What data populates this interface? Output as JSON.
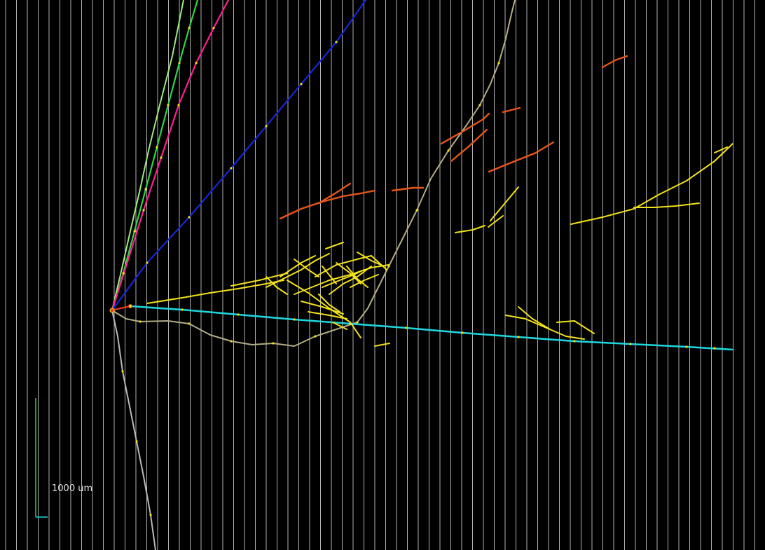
{
  "scale_bar": {
    "label": "1000 um"
  },
  "colors": {
    "background": "#000000",
    "grid": "#cfcfcf",
    "tan_track": "#b3ad86",
    "light_gray_track": "#b8b8b8",
    "green_track": "#2fd44a",
    "light_green_track": "#9be87f",
    "magenta_track": "#ff1f8f",
    "blue_track": "#1726d9",
    "cyan_track": "#1fd6de",
    "orange_segments": "#e8561a",
    "yellow_segments": "#f2e21b",
    "red_vertex": "#e23a1b",
    "scale_bar_vertical": "#2ed04f",
    "scale_bar_horizontal": "#1fd6de"
  },
  "tracks": [
    {
      "name": "green",
      "color_key": "green_track"
    },
    {
      "name": "light-green",
      "color_key": "light_green_track"
    },
    {
      "name": "magenta",
      "color_key": "magenta_track"
    },
    {
      "name": "blue",
      "color_key": "blue_track"
    },
    {
      "name": "tan",
      "color_key": "tan_track"
    },
    {
      "name": "light-gray",
      "color_key": "light_gray_track"
    },
    {
      "name": "cyan",
      "color_key": "cyan_track"
    },
    {
      "name": "red-short",
      "color_key": "red_vertex"
    }
  ]
}
